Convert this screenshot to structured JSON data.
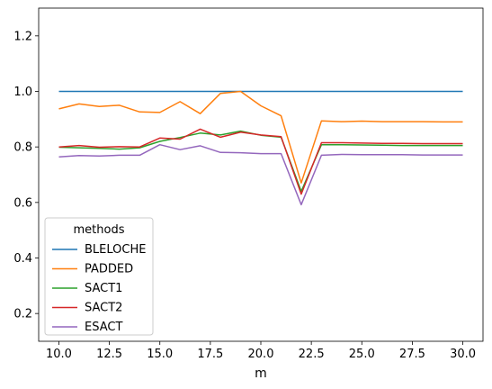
{
  "chart_data": {
    "type": "line",
    "title": "",
    "xlabel": "m",
    "ylabel": "",
    "xlim": [
      9.0,
      31.0
    ],
    "ylim": [
      0.1,
      1.3
    ],
    "xticks": [
      10.0,
      12.5,
      15.0,
      17.5,
      20.0,
      22.5,
      25.0,
      27.5,
      30.0
    ],
    "xtick_labels": [
      "10.0",
      "12.5",
      "15.0",
      "17.5",
      "20.0",
      "22.5",
      "25.0",
      "27.5",
      "30.0"
    ],
    "yticks": [
      0.2,
      0.4,
      0.6,
      0.8,
      1.0,
      1.2
    ],
    "ytick_labels": [
      "0.2",
      "0.4",
      "0.6",
      "0.8",
      "1.0",
      "1.2"
    ],
    "grid": false,
    "legend": {
      "title": "methods",
      "position": "lower-left"
    },
    "x": [
      10,
      11,
      12,
      13,
      14,
      15,
      16,
      17,
      18,
      19,
      20,
      21,
      22,
      23,
      24,
      25,
      26,
      27,
      28,
      29,
      30
    ],
    "series": [
      {
        "name": "BLELOCHE",
        "color": "#1f77b4",
        "values": [
          1.0,
          1.0,
          1.0,
          1.0,
          1.0,
          1.0,
          1.0,
          1.0,
          1.0,
          1.0,
          1.0,
          1.0,
          1.0,
          1.0,
          1.0,
          1.0,
          1.0,
          1.0,
          1.0,
          1.0,
          1.0
        ]
      },
      {
        "name": "PADDED",
        "color": "#ff7f0e",
        "values": [
          0.937,
          0.955,
          0.946,
          0.95,
          0.926,
          0.924,
          0.963,
          0.92,
          0.993,
          1.0,
          0.948,
          0.912,
          0.67,
          0.894,
          0.891,
          0.893,
          0.891,
          0.891,
          0.891,
          0.89,
          0.89
        ]
      },
      {
        "name": "SACT1",
        "color": "#2ca02c",
        "values": [
          0.799,
          0.797,
          0.795,
          0.792,
          0.797,
          0.82,
          0.834,
          0.85,
          0.843,
          0.857,
          0.842,
          0.835,
          0.64,
          0.808,
          0.808,
          0.807,
          0.806,
          0.805,
          0.805,
          0.805,
          0.805
        ]
      },
      {
        "name": "SACT2",
        "color": "#d62728",
        "values": [
          0.8,
          0.805,
          0.799,
          0.801,
          0.8,
          0.832,
          0.828,
          0.864,
          0.835,
          0.853,
          0.843,
          0.837,
          0.63,
          0.815,
          0.815,
          0.814,
          0.813,
          0.813,
          0.812,
          0.812,
          0.812
        ]
      },
      {
        "name": "ESACT",
        "color": "#9467bd",
        "values": [
          0.764,
          0.769,
          0.767,
          0.77,
          0.77,
          0.808,
          0.79,
          0.804,
          0.78,
          0.779,
          0.776,
          0.776,
          0.592,
          0.77,
          0.773,
          0.772,
          0.772,
          0.772,
          0.771,
          0.771,
          0.771
        ]
      }
    ]
  }
}
